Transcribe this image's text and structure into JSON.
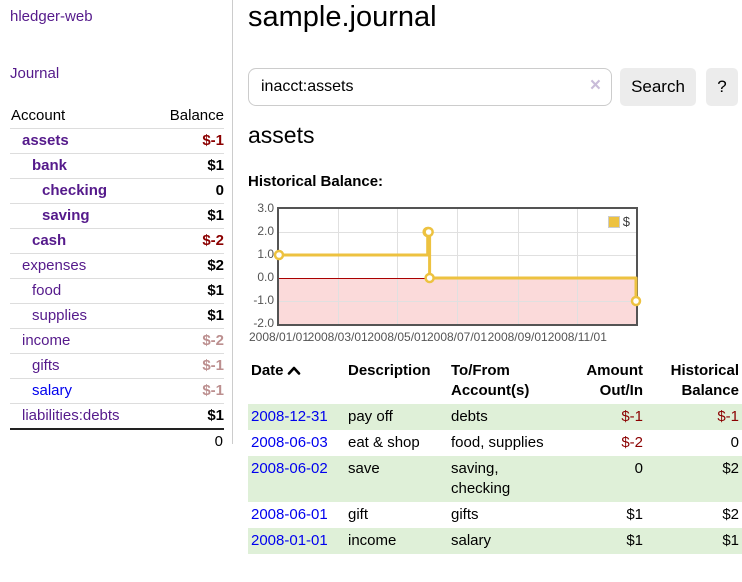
{
  "colors": {
    "purple": "#551a8b",
    "blue": "#0000ee",
    "negative": "#8b0000",
    "negative_light": "#bc8f8f",
    "positive": "#000000",
    "row_highlight": "#dff0d8",
    "chart_negative_region": "#fbdada",
    "chart_zero_line": "#aa0000"
  },
  "sidebar": {
    "app_title": "hledger-web",
    "nav": [
      {
        "label": "Journal"
      }
    ],
    "accounts": {
      "header": {
        "account": "Account",
        "balance": "Balance"
      },
      "rows": [
        {
          "name": "assets",
          "level": 1,
          "bold": true,
          "balance": "$-1",
          "balance_tone": "negative"
        },
        {
          "name": "bank",
          "level": 2,
          "bold": true,
          "balance": "$1",
          "balance_tone": "positive"
        },
        {
          "name": "checking",
          "level": 3,
          "bold": true,
          "balance": "0",
          "balance_tone": "positive"
        },
        {
          "name": "saving",
          "level": 3,
          "bold": true,
          "balance": "$1",
          "balance_tone": "positive"
        },
        {
          "name": "cash",
          "level": 2,
          "bold": true,
          "balance": "$-2",
          "balance_tone": "negative"
        },
        {
          "name": "expenses",
          "level": 1,
          "bold": false,
          "balance": "$2",
          "balance_tone": "positive"
        },
        {
          "name": "food",
          "level": 2,
          "bold": false,
          "balance": "$1",
          "balance_tone": "positive"
        },
        {
          "name": "supplies",
          "level": 2,
          "bold": false,
          "balance": "$1",
          "balance_tone": "positive"
        },
        {
          "name": "income",
          "level": 1,
          "bold": false,
          "balance": "$-2",
          "balance_tone": "negative_light"
        },
        {
          "name": "gifts",
          "level": 2,
          "bold": false,
          "balance": "$-1",
          "balance_tone": "negative_light"
        },
        {
          "name": "salary",
          "level": 2,
          "bold": false,
          "link_tone": "blue",
          "balance": "$-1",
          "balance_tone": "negative_light"
        },
        {
          "name": "liabilities:debts",
          "level": 1,
          "bold": false,
          "balance": "$1",
          "balance_tone": "positive"
        }
      ],
      "total": "0"
    }
  },
  "main": {
    "title": "sample.journal",
    "search": {
      "value": "inacct:assets",
      "clear_icon": "×",
      "submit_label": "Search",
      "help_label": "?"
    },
    "account_heading": "assets"
  },
  "chart_data": {
    "type": "line",
    "title": "Historical Balance:",
    "steps": true,
    "x_range": [
      "2008-01-01",
      "2008-12-31"
    ],
    "ylim": [
      -2.0,
      3.0
    ],
    "yticks": [
      3.0,
      2.0,
      1.0,
      0.0,
      -1.0,
      -2.0
    ],
    "xticks": [
      {
        "date": "2008-01-01",
        "label": "2008/01/01"
      },
      {
        "date": "2008-03-01",
        "label": "2008/03/01"
      },
      {
        "date": "2008-05-01",
        "label": "2008/05/01"
      },
      {
        "date": "2008-07-01",
        "label": "2008/07/01"
      },
      {
        "date": "2008-09-01",
        "label": "2008/09/01"
      },
      {
        "date": "2008-11-01",
        "label": "2008/11/01"
      }
    ],
    "series": [
      {
        "name": "$",
        "color": "#edc240",
        "points": [
          {
            "date": "2008-01-01",
            "value": 1.0
          },
          {
            "date": "2008-06-01",
            "value": 2.0
          },
          {
            "date": "2008-06-02",
            "value": 2.0
          },
          {
            "date": "2008-06-03",
            "value": 0.0
          },
          {
            "date": "2008-12-31",
            "value": -1.0
          }
        ]
      }
    ],
    "legend": {
      "position": "top-right",
      "entries": [
        {
          "label": "$",
          "color": "#edc240"
        }
      ]
    },
    "grid": true,
    "negative_region_below": 0
  },
  "register": {
    "headers": {
      "date": "Date",
      "description": "Description",
      "accounts": "To/From Account(s)",
      "amount": "Amount Out/In",
      "balance": "Historical Balance"
    },
    "sort": {
      "column": "date",
      "direction": "asc"
    },
    "rows": [
      {
        "date": "2008-12-31",
        "description": "pay off",
        "accounts": "debts",
        "amount": "$-1",
        "amount_tone": "negative",
        "balance": "$-1",
        "balance_tone": "negative",
        "highlight": true
      },
      {
        "date": "2008-06-03",
        "description": "eat & shop",
        "accounts": "food, supplies",
        "amount": "$-2",
        "amount_tone": "negative",
        "balance": "0",
        "balance_tone": "positive",
        "highlight": false
      },
      {
        "date": "2008-06-02",
        "description": "save",
        "accounts": "saving, checking",
        "amount": "0",
        "amount_tone": "positive",
        "balance": "$2",
        "balance_tone": "positive",
        "highlight": true
      },
      {
        "date": "2008-06-01",
        "description": "gift",
        "accounts": "gifts",
        "amount": "$1",
        "amount_tone": "positive",
        "balance": "$2",
        "balance_tone": "positive",
        "highlight": false
      },
      {
        "date": "2008-01-01",
        "description": "income",
        "accounts": "salary",
        "amount": "$1",
        "amount_tone": "positive",
        "balance": "$1",
        "balance_tone": "positive",
        "highlight": true
      }
    ]
  }
}
